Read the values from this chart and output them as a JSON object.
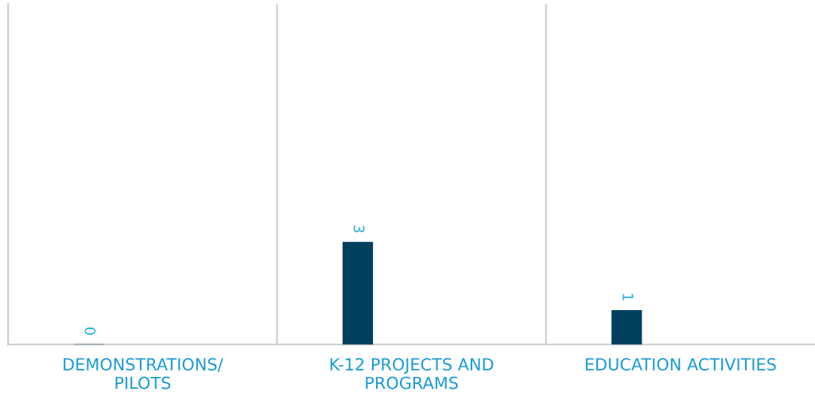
{
  "chart_data": {
    "type": "bar",
    "categories": [
      "DEMONSTRATIONS/\nPILOTS",
      "K-12 PROJECTS AND\nPROGRAMS",
      "EDUCATION ACTIVITIES"
    ],
    "values": [
      0,
      3,
      1
    ],
    "color": "#00405e",
    "data_labels": true,
    "ylim": [
      0,
      10
    ],
    "grid": "x",
    "tick_labels": "x",
    "legend": false
  }
}
